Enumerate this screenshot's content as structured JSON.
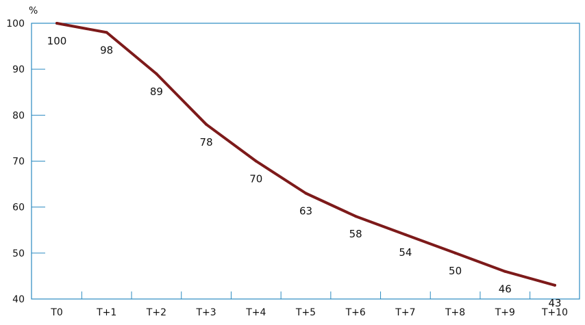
{
  "chart_data": {
    "type": "line",
    "title": "",
    "xlabel": "",
    "ylabel": "%",
    "categories": [
      "T0",
      "T+1",
      "T+2",
      "T+3",
      "T+4",
      "T+5",
      "T+6",
      "T+7",
      "T+8",
      "T+9",
      "T+10"
    ],
    "series": [
      {
        "values": [
          100,
          98,
          89,
          78,
          70,
          63,
          58,
          54,
          50,
          46,
          43
        ]
      }
    ],
    "data_labels": [
      "100",
      "98",
      "89",
      "78",
      "70",
      "63",
      "58",
      "54",
      "50",
      "46",
      "43"
    ],
    "yticks": [
      40,
      50,
      60,
      70,
      80,
      90,
      100
    ],
    "ytick_labels": [
      "40",
      "50",
      "60",
      "70",
      "80",
      "90",
      "100"
    ],
    "ylim": [
      40,
      100
    ],
    "grid": false,
    "legend": "none",
    "colors": {
      "line": "#7d1a1a",
      "axis": "#2a8ac0"
    }
  }
}
